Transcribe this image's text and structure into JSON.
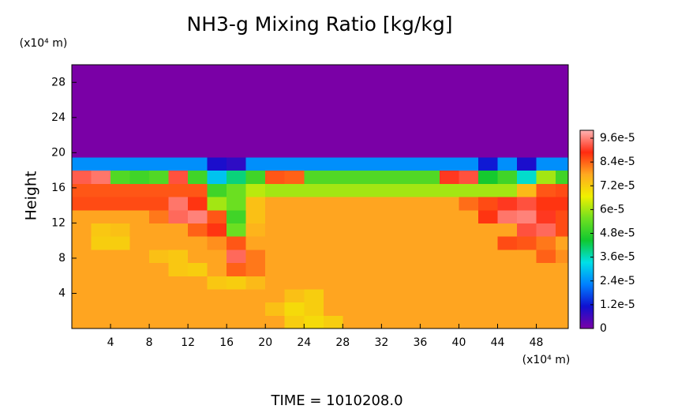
{
  "chart_data": {
    "type": "heatmap",
    "title": "NH3-g Mixing Ratio [kg/kg]",
    "ylabel": "Height",
    "xunit": "(x10⁴ m)",
    "yunit": "(x10⁴ m)",
    "footer": "TIME = 1010208.0",
    "xlim": [
      0,
      51.3
    ],
    "ylim": [
      0,
      30
    ],
    "xticks": [
      4,
      8,
      12,
      16,
      20,
      24,
      28,
      32,
      36,
      40,
      44,
      48
    ],
    "yticks": [
      4,
      8,
      12,
      16,
      20,
      24,
      28
    ],
    "clim": [
      0,
      0.0001
    ],
    "cticks": [
      0,
      {
        "value": 1.2e-05,
        "label": "1.2e-5"
      },
      {
        "value": 2.4e-05,
        "label": "2.4e-5"
      },
      {
        "value": 3.6e-05,
        "label": "3.6e-5"
      },
      {
        "value": 4.8e-05,
        "label": "4.8e-5"
      },
      {
        "value": 6e-05,
        "label": "6e-5"
      },
      {
        "value": 7.2e-05,
        "label": "7.2e-5"
      },
      {
        "value": 8.4e-05,
        "label": "8.4e-5"
      },
      {
        "value": 9.6e-05,
        "label": "9.6e-5"
      }
    ],
    "colormap": [
      "#7a00a6",
      "#1010d0",
      "#0080ff",
      "#00e0e8",
      "#10c830",
      "#70e020",
      "#f0f000",
      "#ffa820",
      "#ff2a10",
      "#ffb4b4"
    ],
    "x": [
      1,
      3,
      5,
      7,
      9,
      11,
      13,
      15,
      17,
      19,
      21,
      23,
      25,
      27,
      29,
      31,
      33,
      35,
      37,
      39,
      41,
      43,
      45,
      47,
      49,
      51
    ],
    "y": [
      0.75,
      2.25,
      3.75,
      5.25,
      6.75,
      8.25,
      9.75,
      11.25,
      12.75,
      14.25,
      15.75,
      17.25,
      18.75,
      20.25,
      21.75,
      23.25,
      24.75,
      26.25,
      27.75,
      29.25
    ],
    "z": [
      [
        7.8e-05,
        7.8e-05,
        7.8e-05,
        7.8e-05,
        7.8e-05,
        7.8e-05,
        7.8e-05,
        7.8e-05,
        7.8e-05,
        7.8e-05,
        7.8e-05,
        7.2e-05,
        7e-05,
        7.2e-05,
        7.8e-05,
        7.8e-05,
        7.8e-05,
        7.8e-05,
        7.8e-05,
        7.8e-05,
        7.8e-05,
        7.8e-05,
        7.8e-05,
        7.8e-05,
        7.8e-05,
        7.8e-05
      ],
      [
        7.8e-05,
        7.8e-05,
        7.8e-05,
        7.8e-05,
        7.8e-05,
        7.8e-05,
        7.8e-05,
        7.8e-05,
        7.8e-05,
        7.8e-05,
        7.4e-05,
        7e-05,
        7.2e-05,
        7.8e-05,
        7.8e-05,
        7.8e-05,
        7.8e-05,
        7.8e-05,
        7.8e-05,
        7.8e-05,
        7.8e-05,
        7.8e-05,
        7.8e-05,
        7.8e-05,
        7.8e-05,
        7.8e-05
      ],
      [
        7.8e-05,
        7.8e-05,
        7.8e-05,
        7.8e-05,
        7.8e-05,
        7.8e-05,
        7.8e-05,
        7.8e-05,
        7.8e-05,
        7.8e-05,
        7.8e-05,
        7.4e-05,
        7.2e-05,
        7.8e-05,
        7.8e-05,
        7.8e-05,
        7.8e-05,
        7.8e-05,
        7.8e-05,
        7.8e-05,
        7.8e-05,
        7.8e-05,
        7.8e-05,
        7.8e-05,
        7.8e-05,
        7.8e-05
      ],
      [
        7.8e-05,
        7.8e-05,
        7.8e-05,
        7.8e-05,
        7.8e-05,
        7.8e-05,
        7.8e-05,
        7.3e-05,
        7.2e-05,
        7.5e-05,
        7.8e-05,
        7.8e-05,
        7.8e-05,
        7.8e-05,
        7.8e-05,
        7.8e-05,
        7.8e-05,
        7.8e-05,
        7.8e-05,
        7.8e-05,
        7.8e-05,
        7.8e-05,
        7.8e-05,
        7.8e-05,
        7.8e-05,
        7.8e-05
      ],
      [
        7.8e-05,
        7.8e-05,
        7.8e-05,
        7.8e-05,
        7.8e-05,
        7.3e-05,
        7.2e-05,
        7.8e-05,
        8.4e-05,
        8.2e-05,
        7.8e-05,
        7.8e-05,
        7.8e-05,
        7.8e-05,
        7.8e-05,
        7.8e-05,
        7.8e-05,
        7.8e-05,
        7.8e-05,
        7.8e-05,
        7.8e-05,
        7.8e-05,
        7.8e-05,
        7.8e-05,
        7.8e-05,
        7.8e-05
      ],
      [
        7.8e-05,
        7.8e-05,
        7.8e-05,
        7.8e-05,
        7.4e-05,
        7.3e-05,
        7.8e-05,
        7.8e-05,
        9.4e-05,
        8.2e-05,
        7.8e-05,
        7.8e-05,
        7.8e-05,
        7.8e-05,
        7.8e-05,
        7.8e-05,
        7.8e-05,
        7.8e-05,
        7.8e-05,
        7.8e-05,
        7.8e-05,
        7.8e-05,
        7.8e-05,
        7.8e-05,
        8.4e-05,
        8e-05
      ],
      [
        7.8e-05,
        7.2e-05,
        7.2e-05,
        7.8e-05,
        7.8e-05,
        7.8e-05,
        7.8e-05,
        8e-05,
        8.5e-05,
        7.8e-05,
        7.8e-05,
        7.8e-05,
        7.8e-05,
        7.8e-05,
        7.8e-05,
        7.8e-05,
        7.8e-05,
        7.8e-05,
        7.8e-05,
        7.8e-05,
        7.8e-05,
        7.8e-05,
        8.6e-05,
        8.5e-05,
        8.2e-05,
        7.8e-05
      ],
      [
        7.8e-05,
        7.3e-05,
        7.4e-05,
        7.8e-05,
        7.8e-05,
        7.8e-05,
        8.4e-05,
        8.8e-05,
        5.5e-05,
        7.6e-05,
        7.8e-05,
        7.8e-05,
        7.8e-05,
        7.8e-05,
        7.8e-05,
        7.8e-05,
        7.8e-05,
        7.8e-05,
        7.8e-05,
        7.8e-05,
        7.8e-05,
        7.8e-05,
        7.8e-05,
        9.2e-05,
        9.4e-05,
        8.6e-05
      ],
      [
        7.8e-05,
        7.8e-05,
        7.8e-05,
        7.8e-05,
        8.2e-05,
        9.4e-05,
        9.6e-05,
        8.5e-05,
        5e-05,
        7.4e-05,
        7.8e-05,
        7.8e-05,
        7.8e-05,
        7.8e-05,
        7.8e-05,
        7.8e-05,
        7.8e-05,
        7.8e-05,
        7.8e-05,
        7.8e-05,
        7.8e-05,
        8.8e-05,
        9.5e-05,
        9.6e-05,
        9e-05,
        8.6e-05
      ],
      [
        8.6e-05,
        8.6e-05,
        8.6e-05,
        8.6e-05,
        8.6e-05,
        9.5e-05,
        8.8e-05,
        6e-05,
        5.5e-05,
        7.4e-05,
        7.8e-05,
        7.8e-05,
        7.8e-05,
        7.8e-05,
        7.8e-05,
        7.8e-05,
        7.8e-05,
        7.8e-05,
        7.8e-05,
        7.8e-05,
        8.3e-05,
        8.6e-05,
        9e-05,
        9.2e-05,
        8.8e-05,
        8.8e-05
      ],
      [
        8.5e-05,
        8.5e-05,
        8.5e-05,
        8.5e-05,
        8.5e-05,
        8.5e-05,
        8.5e-05,
        5e-05,
        5.5e-05,
        6.2e-05,
        6e-05,
        6e-05,
        6e-05,
        6e-05,
        6e-05,
        6e-05,
        6e-05,
        6e-05,
        6e-05,
        6e-05,
        6e-05,
        6e-05,
        6e-05,
        7.5e-05,
        8.5e-05,
        8.6e-05
      ],
      [
        9.3e-05,
        9.5e-05,
        5.2e-05,
        5e-05,
        5.2e-05,
        9.2e-05,
        5e-05,
        3e-05,
        4e-05,
        5e-05,
        8.5e-05,
        8.4e-05,
        5.2e-05,
        5.2e-05,
        5.2e-05,
        5.2e-05,
        5.2e-05,
        5.2e-05,
        5.2e-05,
        9e-05,
        9.2e-05,
        4.5e-05,
        5e-05,
        3.5e-05,
        6e-05,
        5e-05
      ],
      [
        2.4e-05,
        2.4e-05,
        2.4e-05,
        2.4e-05,
        2.4e-05,
        2.4e-05,
        2.4e-05,
        1e-05,
        8e-06,
        2.4e-05,
        2.4e-05,
        2.4e-05,
        2.4e-05,
        2.4e-05,
        2.4e-05,
        2.4e-05,
        2.4e-05,
        2.4e-05,
        2.4e-05,
        2.4e-05,
        2.4e-05,
        1.2e-05,
        2.4e-05,
        1e-05,
        2.4e-05,
        2.4e-05
      ],
      [
        0,
        0,
        0,
        0,
        0,
        0,
        0,
        0,
        0,
        0,
        0,
        0,
        0,
        0,
        0,
        0,
        0,
        0,
        0,
        0,
        0,
        0,
        0,
        0,
        0,
        0
      ],
      [
        0,
        0,
        0,
        0,
        0,
        0,
        0,
        0,
        0,
        0,
        0,
        0,
        0,
        0,
        0,
        0,
        0,
        0,
        0,
        0,
        0,
        0,
        0,
        0,
        0,
        0
      ],
      [
        0,
        0,
        0,
        0,
        0,
        0,
        0,
        0,
        0,
        0,
        0,
        0,
        0,
        0,
        0,
        0,
        0,
        0,
        0,
        0,
        0,
        0,
        0,
        0,
        0,
        0
      ],
      [
        0,
        0,
        0,
        0,
        0,
        0,
        0,
        0,
        0,
        0,
        0,
        0,
        0,
        0,
        0,
        0,
        0,
        0,
        0,
        0,
        0,
        0,
        0,
        0,
        0,
        0
      ],
      [
        0,
        0,
        0,
        0,
        0,
        0,
        0,
        0,
        0,
        0,
        0,
        0,
        0,
        0,
        0,
        0,
        0,
        0,
        0,
        0,
        0,
        0,
        0,
        0,
        0,
        0
      ],
      [
        0,
        0,
        0,
        0,
        0,
        0,
        0,
        0,
        0,
        0,
        0,
        0,
        0,
        0,
        0,
        0,
        0,
        0,
        0,
        0,
        0,
        0,
        0,
        0,
        0,
        0
      ],
      [
        0,
        0,
        0,
        0,
        0,
        0,
        0,
        0,
        0,
        0,
        0,
        0,
        0,
        0,
        0,
        0,
        0,
        0,
        0,
        0,
        0,
        0,
        0,
        0,
        0,
        0
      ]
    ]
  }
}
